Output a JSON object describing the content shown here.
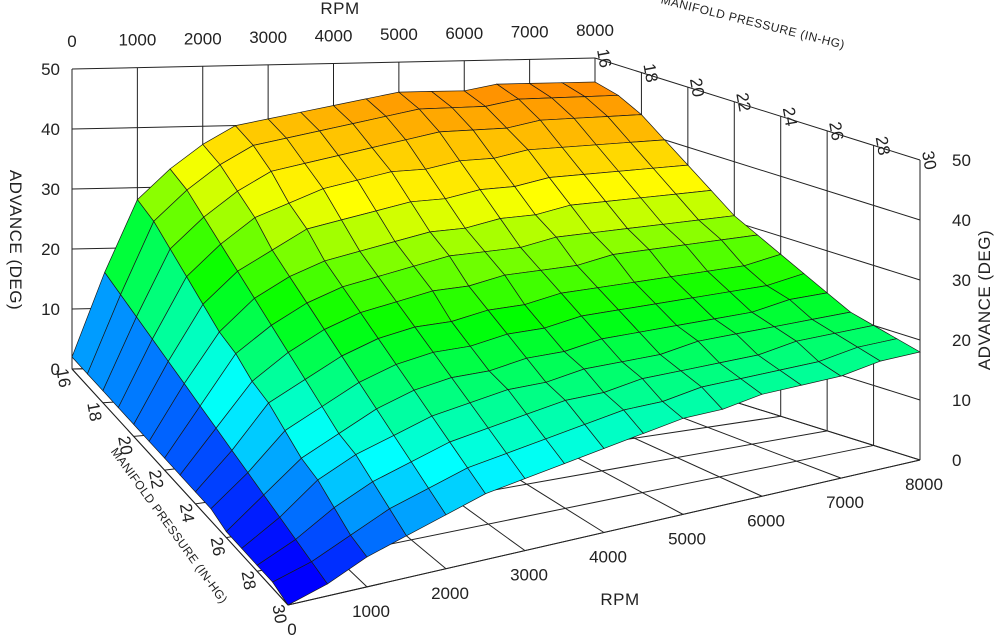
{
  "chart_data": {
    "type": "surface3d",
    "title": "",
    "zlabel": "ADVANCE (DEG)",
    "xlabel": "RPM",
    "ylabel": "MANIFOLD PRESSURE (IN-HG)",
    "x_ticks": [
      "0",
      "1000",
      "2000",
      "3000",
      "4000",
      "5000",
      "6000",
      "7000",
      "8000"
    ],
    "y_ticks": [
      "16",
      "18",
      "20",
      "22",
      "24",
      "26",
      "28",
      "30"
    ],
    "z_ticks": [
      "0",
      "10",
      "20",
      "30",
      "40",
      "50"
    ],
    "xlim": [
      0,
      8000
    ],
    "ylim": [
      16,
      30
    ],
    "zlim": [
      0,
      50
    ],
    "grid": true,
    "colormap": [
      "#0000ff",
      "#00ffff",
      "#00ff00",
      "#ffff00",
      "#ff8800"
    ],
    "rpm": [
      0,
      500,
      1000,
      1500,
      2000,
      2500,
      3000,
      3500,
      4000,
      4500,
      5000,
      5500,
      6000,
      6500,
      7000,
      7500,
      8000
    ],
    "manifold_pressure": [
      16,
      17,
      18,
      19,
      20,
      21,
      22,
      23,
      24,
      25,
      26,
      27,
      28,
      29,
      30
    ],
    "advance": [
      [
        2,
        16,
        28,
        33,
        37,
        40,
        41,
        42,
        43,
        44,
        45,
        45,
        45,
        46,
        46,
        46,
        46
      ],
      [
        2,
        15,
        27,
        32,
        36,
        39,
        40,
        41,
        42,
        43,
        44,
        44,
        44,
        45,
        45,
        45,
        45
      ],
      [
        2,
        14,
        25,
        30,
        34,
        37,
        38,
        39,
        40,
        41,
        42,
        42,
        42,
        43,
        43,
        43,
        43
      ],
      [
        2,
        13,
        23,
        28,
        32,
        34,
        36,
        37,
        38,
        38,
        39,
        39,
        40,
        40,
        40,
        40,
        40
      ],
      [
        2,
        12,
        21,
        26,
        29,
        32,
        33,
        34,
        35,
        35,
        36,
        36,
        37,
        37,
        37,
        37,
        37
      ],
      [
        2,
        11,
        19,
        24,
        27,
        29,
        30,
        31,
        32,
        32,
        33,
        33,
        34,
        34,
        34,
        34,
        34
      ],
      [
        2,
        10,
        18,
        22,
        25,
        27,
        28,
        29,
        30,
        30,
        30,
        31,
        31,
        31,
        31,
        31,
        31
      ],
      [
        2,
        9,
        16,
        20,
        23,
        25,
        26,
        27,
        27,
        28,
        28,
        28,
        29,
        29,
        29,
        29,
        29
      ],
      [
        2,
        8,
        15,
        18,
        21,
        23,
        24,
        24,
        25,
        25,
        26,
        26,
        26,
        26,
        26,
        26,
        27
      ],
      [
        2,
        7,
        13,
        16,
        19,
        21,
        22,
        22,
        23,
        23,
        24,
        24,
        24,
        24,
        24,
        24,
        25
      ],
      [
        1,
        6,
        11,
        14,
        17,
        19,
        20,
        20,
        21,
        21,
        22,
        22,
        22,
        22,
        22,
        23,
        23
      ],
      [
        1,
        5,
        10,
        13,
        15,
        17,
        18,
        19,
        19,
        20,
        20,
        20,
        21,
        21,
        21,
        21,
        21
      ],
      [
        1,
        4,
        8,
        11,
        13,
        15,
        16,
        17,
        18,
        18,
        19,
        19,
        19,
        19,
        20,
        20,
        20
      ],
      [
        1,
        3,
        6,
        9,
        11,
        13,
        14,
        15,
        16,
        17,
        17,
        18,
        18,
        18,
        18,
        19,
        19
      ],
      [
        0,
        2,
        5,
        7,
        9,
        11,
        12,
        13,
        14,
        15,
        16,
        16,
        17,
        17,
        17,
        18,
        18
      ]
    ]
  }
}
